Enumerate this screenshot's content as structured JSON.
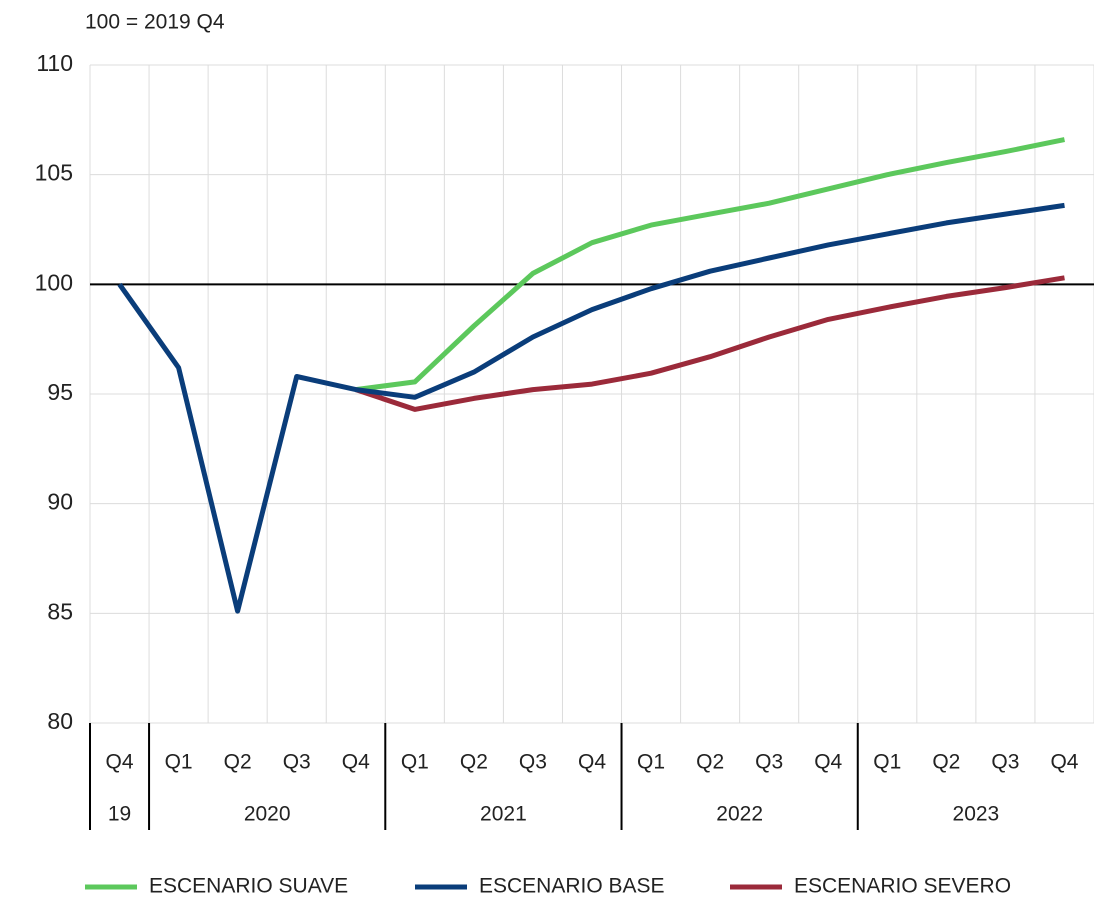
{
  "chart_data": {
    "type": "line",
    "subtitle": "100 = 2019 Q4",
    "categories": [
      "Q4",
      "Q1",
      "Q2",
      "Q3",
      "Q4",
      "Q1",
      "Q2",
      "Q3",
      "Q4",
      "Q1",
      "Q2",
      "Q3",
      "Q4",
      "Q1",
      "Q2",
      "Q3",
      "Q4"
    ],
    "group_labels": [
      "19",
      "2020",
      "2021",
      "2022",
      "2023"
    ],
    "group_sizes": [
      1,
      4,
      4,
      4,
      4
    ],
    "series": [
      {
        "name": "ESCENARIO SUAVE",
        "color": "#5cc85c",
        "values": [
          null,
          null,
          null,
          null,
          95.2,
          95.55,
          98.1,
          100.5,
          101.9,
          102.7,
          103.2,
          103.7,
          104.35,
          105.0,
          105.55,
          106.05,
          106.6
        ]
      },
      {
        "name": "ESCENARIO BASE",
        "color": "#0a3d7a",
        "values": [
          100,
          96.2,
          85.1,
          95.8,
          95.2,
          94.85,
          96.0,
          97.6,
          98.85,
          99.8,
          100.6,
          101.2,
          101.8,
          102.3,
          102.8,
          103.2,
          103.6
        ]
      },
      {
        "name": "ESCENARIO SEVERO",
        "color": "#9b2a3a",
        "values": [
          null,
          null,
          null,
          null,
          95.2,
          94.3,
          94.8,
          95.2,
          95.45,
          95.95,
          96.7,
          97.6,
          98.4,
          98.95,
          99.45,
          99.85,
          100.3
        ]
      }
    ],
    "ylim": [
      80,
      110
    ],
    "yticks": [
      80,
      85,
      90,
      95,
      100,
      105,
      110
    ],
    "reference_line": 100,
    "grid": true,
    "legend": "bottom"
  }
}
